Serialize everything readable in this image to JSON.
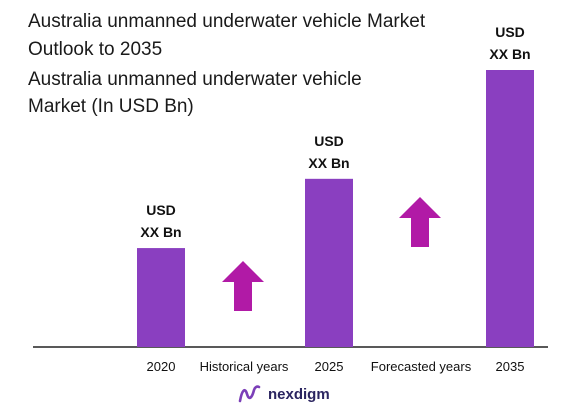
{
  "title_line1": "Australia unmanned underwater vehicle Market",
  "title_line2": "Outlook to 2035",
  "subtitle_line1": "Australia unmanned underwater vehicle",
  "subtitle_line2": "Market (In USD Bn)",
  "brand": "nexdigm",
  "colors": {
    "bar": "#8a3fc0",
    "arrow": "#b11aa6",
    "axis": "#222222",
    "brand": "#2b2560"
  },
  "chart_data": {
    "type": "bar",
    "categories": [
      "2020",
      "2025",
      "2035"
    ],
    "values": [
      1.0,
      1.7,
      2.8
    ],
    "data_labels": [
      [
        "USD",
        "XX Bn"
      ],
      [
        "USD",
        "XX Bn"
      ],
      [
        "USD",
        "XX Bn"
      ]
    ],
    "period_labels": [
      "Historical years",
      "Forecasted years"
    ],
    "ylim": [
      0,
      2.8
    ],
    "grid": false,
    "legend": "none"
  }
}
